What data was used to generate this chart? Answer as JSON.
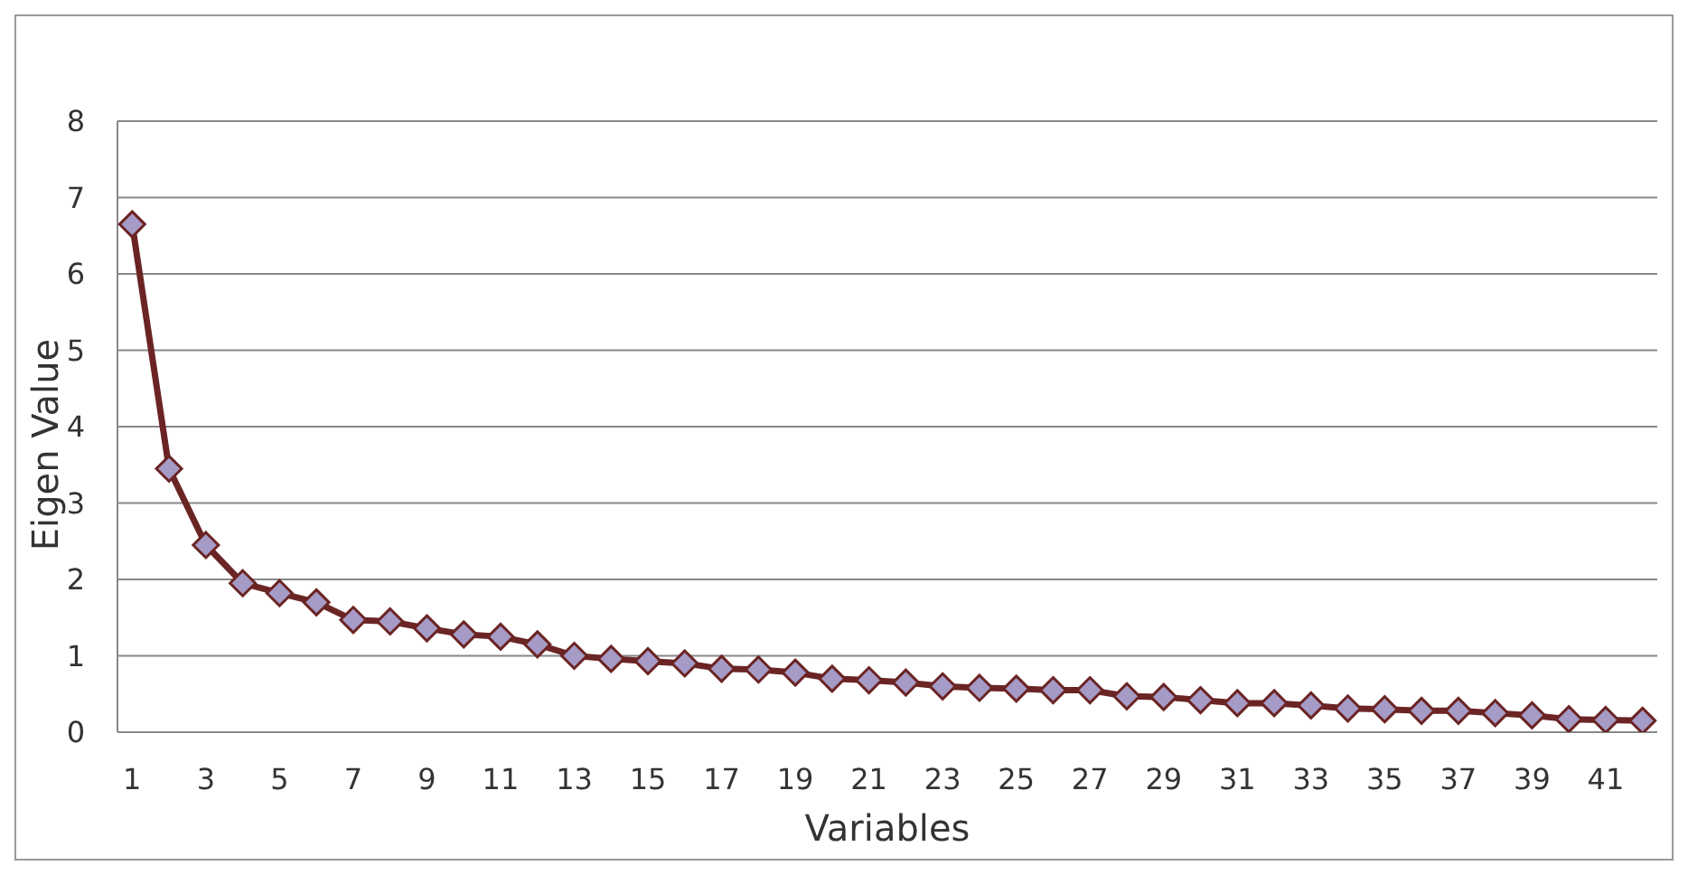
{
  "chart_data": {
    "type": "line",
    "xlabel": "Variables",
    "ylabel": "Eigen Value",
    "x": [
      1,
      2,
      3,
      4,
      5,
      6,
      7,
      8,
      9,
      10,
      11,
      12,
      13,
      14,
      15,
      16,
      17,
      18,
      19,
      20,
      21,
      22,
      23,
      24,
      25,
      26,
      27,
      28,
      29,
      30,
      31,
      32,
      33,
      34,
      35,
      36,
      37,
      38,
      39,
      40,
      41,
      42
    ],
    "xlim": [
      0.6,
      42.4
    ],
    "xticks": [
      1,
      3,
      5,
      7,
      9,
      11,
      13,
      15,
      17,
      19,
      21,
      23,
      25,
      27,
      29,
      31,
      33,
      35,
      37,
      39,
      41
    ],
    "series": [
      {
        "color": "#6b2424",
        "values": [
          6.65,
          3.45,
          2.45,
          1.95,
          1.82,
          1.7,
          1.47,
          1.45,
          1.36,
          1.28,
          1.25,
          1.15,
          1.0,
          0.96,
          0.93,
          0.9,
          0.83,
          0.82,
          0.78,
          0.7,
          0.68,
          0.65,
          0.6,
          0.58,
          0.57,
          0.55,
          0.55,
          0.47,
          0.46,
          0.42,
          0.38,
          0.38,
          0.35,
          0.31,
          0.3,
          0.28,
          0.28,
          0.25,
          0.22,
          0.17,
          0.16,
          0.15
        ]
      }
    ],
    "ylim": [
      0,
      8
    ],
    "yticks": [
      0,
      1,
      2,
      3,
      4,
      5,
      6,
      7,
      8
    ],
    "grid": "y",
    "marker": "diamond",
    "line_style": "solid"
  }
}
